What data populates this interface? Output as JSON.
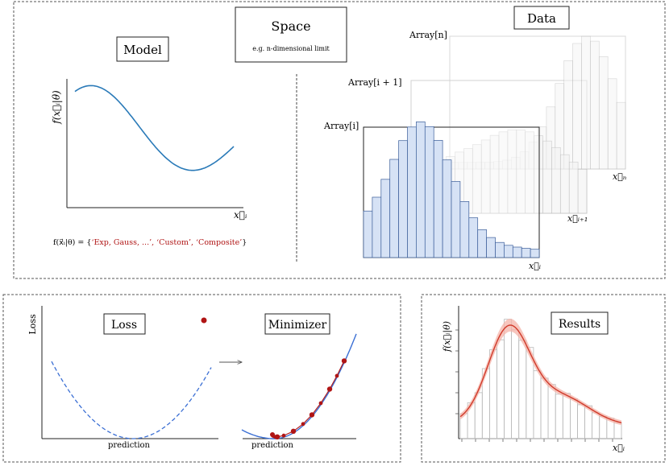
{
  "panels": {
    "model": {
      "label": "Model",
      "ylabel": "f(x⃗ᵢ|θ)",
      "xlabel": "x⃗ᵢ",
      "formula": {
        "lhs": "f(x⃗ᵢ|θ) = {",
        "options": "‘Exp, Gauss, ...’, ‘Custom’, ‘Composite’",
        "rhs": "}"
      }
    },
    "space": {
      "label": "Space",
      "sub": "e.g. n-dimensional limit"
    },
    "data": {
      "label": "Data",
      "arrays": [
        {
          "name": "Array[i]",
          "xlabel": "x⃗ᵢ"
        },
        {
          "name": "Array[i + 1]",
          "xlabel": "x⃗ᵢ₊₁"
        },
        {
          "name": "Array[n]",
          "xlabel": "x⃗ₙ"
        }
      ]
    },
    "loss": {
      "label": "Loss",
      "ylabel": "Loss",
      "xlabel": "prediction"
    },
    "minimizer": {
      "label": "Minimizer",
      "xlabel": "prediction"
    },
    "results": {
      "label": "Results",
      "ylabel": "f(x⃗ᵢ|θ)",
      "xlabel": "x⃗ᵢ"
    }
  },
  "colors": {
    "model_curve": "#2a7ab8",
    "hist_fill": "#d6e2f5",
    "hist_edge": "#3a5d99",
    "faded_edge": "#bbbbbb",
    "loss_curve": "#3b6fd4",
    "points": "#b01515",
    "fit_line": "#d13a2a",
    "fit_band": "#f4b3a8",
    "formula_red": "#b01515"
  }
}
